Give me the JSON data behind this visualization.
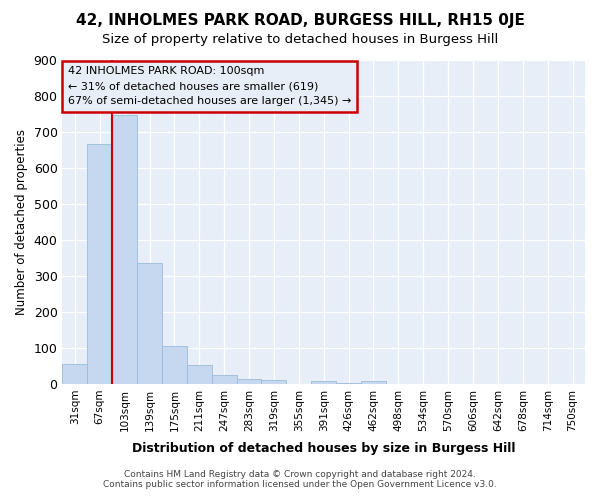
{
  "title": "42, INHOLMES PARK ROAD, BURGESS HILL, RH15 0JE",
  "subtitle": "Size of property relative to detached houses in Burgess Hill",
  "xlabel": "Distribution of detached houses by size in Burgess Hill",
  "ylabel": "Number of detached properties",
  "footer_line1": "Contains HM Land Registry data © Crown copyright and database right 2024.",
  "footer_line2": "Contains public sector information licensed under the Open Government Licence v3.0.",
  "bar_labels": [
    "31sqm",
    "67sqm",
    "103sqm",
    "139sqm",
    "175sqm",
    "211sqm",
    "247sqm",
    "283sqm",
    "319sqm",
    "355sqm",
    "391sqm",
    "426sqm",
    "462sqm",
    "498sqm",
    "534sqm",
    "570sqm",
    "606sqm",
    "642sqm",
    "678sqm",
    "714sqm",
    "750sqm"
  ],
  "bar_values": [
    55,
    667,
    748,
    335,
    105,
    52,
    25,
    15,
    12,
    0,
    8,
    3,
    8,
    0,
    0,
    0,
    0,
    0,
    0,
    0,
    0
  ],
  "bar_color": "#c5d8f0",
  "bar_edge_color": "#9bbcd8",
  "fig_background": "#ffffff",
  "plot_background": "#e8eef8",
  "grid_color": "#ffffff",
  "vline_color": "#cc0000",
  "vline_bar_index": 2,
  "annotation_line1": "42 INHOLMES PARK ROAD: 100sqm",
  "annotation_line2": "← 31% of detached houses are smaller (619)",
  "annotation_line3": "67% of semi-detached houses are larger (1,345) →",
  "annotation_box_edgecolor": "#cc0000",
  "ylim_max": 900,
  "yticks": [
    0,
    100,
    200,
    300,
    400,
    500,
    600,
    700,
    800,
    900
  ],
  "title_fontsize": 11,
  "subtitle_fontsize": 9.5
}
